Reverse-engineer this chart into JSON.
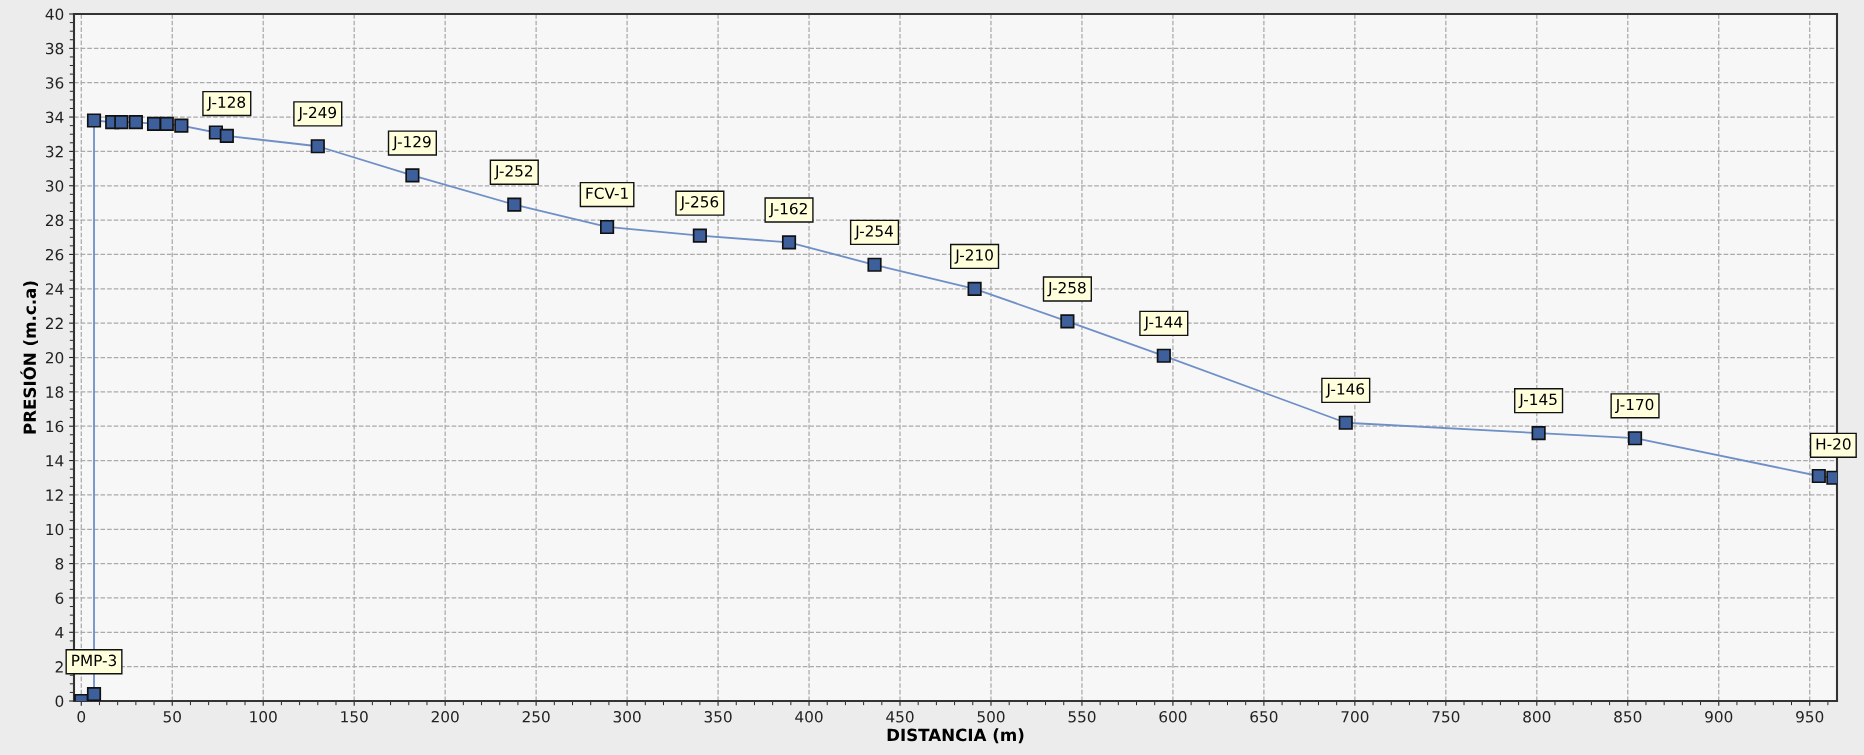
{
  "chart_data": {
    "type": "line",
    "xlabel": "DISTANCIA (m)",
    "ylabel": "PRESIÓN (m.c.a)",
    "xlim": [
      -4,
      965
    ],
    "ylim": [
      0,
      40
    ],
    "xticks": [
      0,
      50,
      100,
      150,
      200,
      250,
      300,
      350,
      400,
      450,
      500,
      550,
      600,
      650,
      700,
      750,
      800,
      850,
      900,
      950
    ],
    "yticks": [
      0,
      2,
      4,
      6,
      8,
      10,
      12,
      14,
      16,
      18,
      20,
      22,
      24,
      26,
      28,
      30,
      32,
      34,
      36,
      38,
      40
    ],
    "grid": true,
    "marker": "square",
    "line_style": "solid",
    "legend": false,
    "series": [
      {
        "color": "#6f8fc7",
        "x": [
          0,
          7,
          7,
          17,
          22,
          30,
          40,
          47,
          55,
          74,
          80,
          130,
          182,
          238,
          289,
          340,
          389,
          436,
          491,
          542,
          595,
          695,
          801,
          854,
          955,
          963
        ],
        "values": [
          0,
          0.4,
          33.8,
          33.7,
          33.7,
          33.7,
          33.6,
          33.6,
          33.5,
          33.1,
          32.9,
          32.3,
          30.6,
          28.9,
          27.6,
          27.1,
          26.7,
          25.4,
          24.0,
          22.1,
          20.1,
          16.2,
          15.6,
          15.3,
          13.1,
          13.0
        ]
      }
    ],
    "annotations": [
      {
        "text": "PMP-3",
        "x": 7,
        "y": 0.4
      },
      {
        "text": "J-128",
        "x": 80,
        "y": 32.9
      },
      {
        "text": "J-249",
        "x": 130,
        "y": 32.3
      },
      {
        "text": "J-129",
        "x": 182,
        "y": 30.6
      },
      {
        "text": "J-252",
        "x": 238,
        "y": 28.9
      },
      {
        "text": "FCV-1",
        "x": 289,
        "y": 27.6
      },
      {
        "text": "J-256",
        "x": 340,
        "y": 27.1
      },
      {
        "text": "J-162",
        "x": 389,
        "y": 26.7
      },
      {
        "text": "J-254",
        "x": 436,
        "y": 25.4
      },
      {
        "text": "J-210",
        "x": 491,
        "y": 24.0
      },
      {
        "text": "J-258",
        "x": 542,
        "y": 22.1
      },
      {
        "text": "J-144",
        "x": 595,
        "y": 20.1
      },
      {
        "text": "J-146",
        "x": 695,
        "y": 16.2
      },
      {
        "text": "J-145",
        "x": 801,
        "y": 15.6
      },
      {
        "text": "J-170",
        "x": 854,
        "y": 15.3
      },
      {
        "text": "H-20",
        "x": 963,
        "y": 13.0
      }
    ]
  }
}
